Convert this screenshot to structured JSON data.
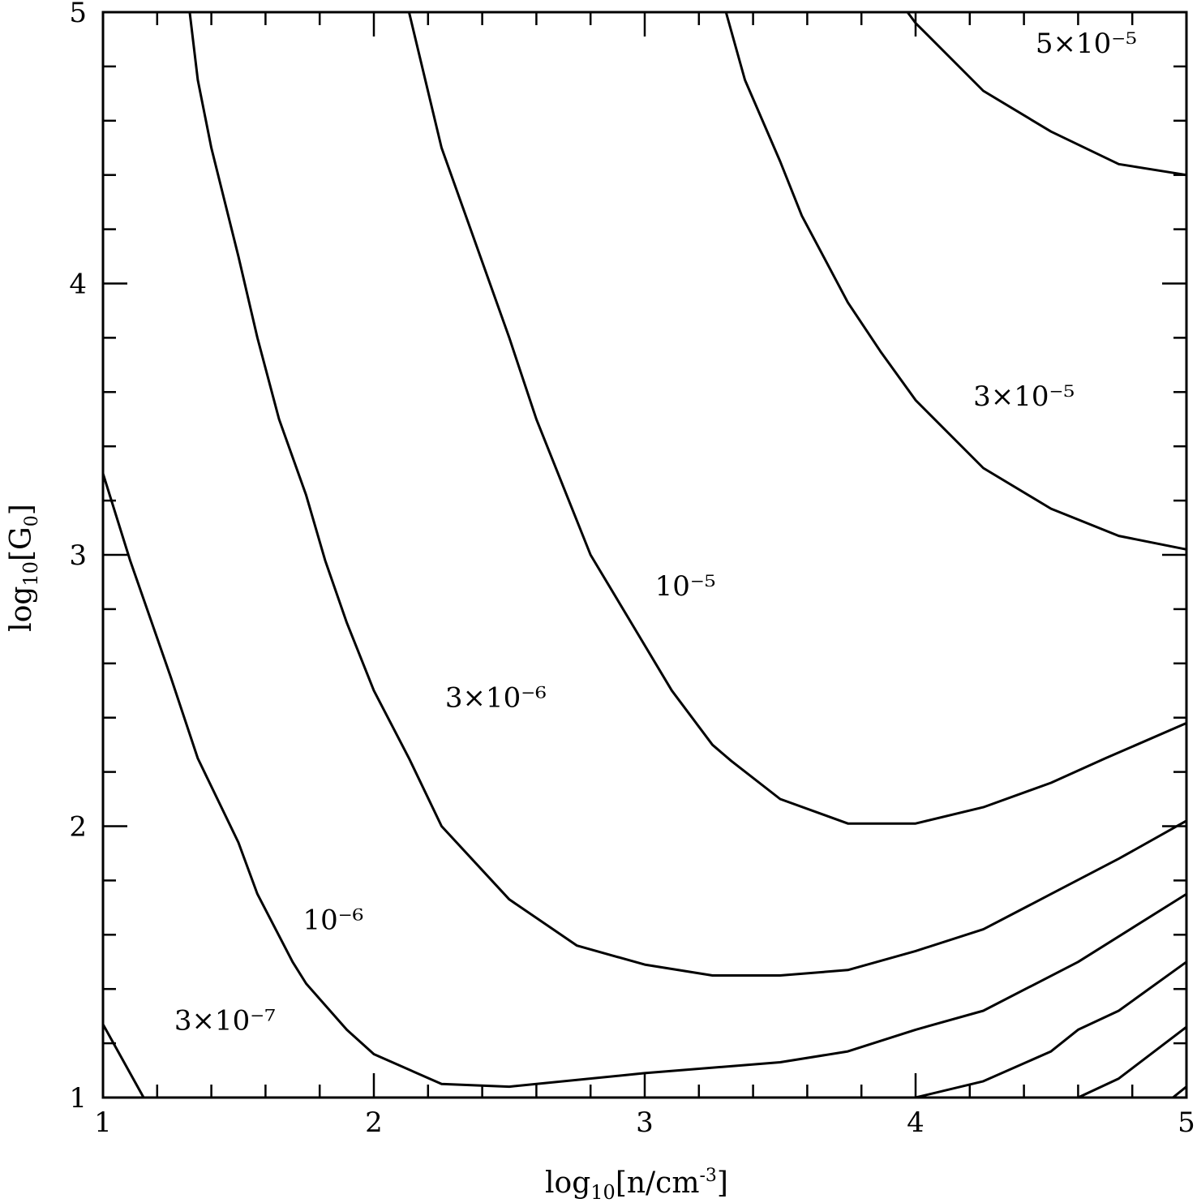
{
  "chart_data": {
    "type": "line",
    "xlabel": "log10[n/cm-3]",
    "ylabel": "log10[G0]",
    "xlim": [
      1,
      5
    ],
    "ylim": [
      1,
      5
    ],
    "xticks": [
      "1",
      "2",
      "3",
      "4",
      "5"
    ],
    "yticks": [
      "1",
      "2",
      "3",
      "4",
      "5"
    ],
    "grid": false,
    "series": [
      {
        "name": "3×10⁻⁷",
        "label_at": [
          1.45,
          1.25
        ],
        "x": [
          1.0,
          1.15
        ],
        "y": [
          1.27,
          1.0
        ]
      },
      {
        "name": "10⁻⁶",
        "label_at": [
          1.85,
          1.62
        ],
        "x": [
          1.0,
          1.1,
          1.25,
          1.35,
          1.5,
          1.57,
          1.7,
          1.75,
          1.9,
          2.0,
          2.25,
          2.5,
          3.0,
          3.5,
          3.75,
          4.0,
          4.25,
          4.6,
          5.0
        ],
        "y": [
          3.3,
          2.98,
          2.55,
          2.25,
          1.94,
          1.75,
          1.5,
          1.42,
          1.25,
          1.16,
          1.05,
          1.04,
          1.09,
          1.13,
          1.17,
          1.25,
          1.32,
          1.5,
          1.75
        ]
      },
      {
        "name": "3×10⁻⁶",
        "label_at": [
          2.45,
          2.44
        ],
        "x": [
          1.32,
          1.35,
          1.4,
          1.5,
          1.57,
          1.65,
          1.75,
          1.82,
          1.9,
          2.0,
          2.13,
          2.25,
          2.5,
          2.75,
          3.0,
          3.25,
          3.5,
          3.75,
          4.0,
          4.25,
          4.5,
          4.75,
          5.0
        ],
        "y": [
          5.0,
          4.75,
          4.5,
          4.1,
          3.8,
          3.5,
          3.22,
          2.98,
          2.75,
          2.5,
          2.25,
          2.0,
          1.73,
          1.56,
          1.49,
          1.45,
          1.45,
          1.47,
          1.54,
          1.62,
          1.75,
          1.88,
          2.02
        ]
      },
      {
        "name": "10⁻⁵",
        "label_at": [
          3.15,
          2.85
        ],
        "x": [
          2.13,
          2.25,
          2.35,
          2.5,
          2.6,
          2.7,
          2.8,
          2.95,
          3.1,
          3.25,
          3.32,
          3.5,
          3.75,
          4.0,
          4.25,
          4.5,
          4.7,
          5.0
        ],
        "y": [
          5.0,
          4.5,
          4.22,
          3.8,
          3.5,
          3.25,
          3.0,
          2.75,
          2.5,
          2.3,
          2.24,
          2.1,
          2.01,
          2.01,
          2.07,
          2.16,
          2.25,
          2.38
        ]
      },
      {
        "name": "3×10⁻⁵",
        "label_at": [
          4.4,
          3.55
        ],
        "x": [
          3.3,
          3.37,
          3.5,
          3.58,
          3.75,
          3.87,
          4.0,
          4.25,
          4.5,
          4.75,
          5.0
        ],
        "y": [
          5.0,
          4.75,
          4.45,
          4.25,
          3.93,
          3.75,
          3.57,
          3.32,
          3.17,
          3.07,
          3.02
        ]
      },
      {
        "name": "5×10⁻⁵",
        "label_at": [
          4.63,
          4.85
        ],
        "x": [
          3.97,
          4.0,
          4.25,
          4.5,
          4.75,
          5.0
        ],
        "y": [
          5.0,
          4.96,
          4.71,
          4.56,
          4.44,
          4.4
        ]
      },
      {
        "name": "",
        "x": [
          4.0,
          4.25,
          4.5,
          4.6,
          4.75,
          5.0
        ],
        "y": [
          1.0,
          1.06,
          1.17,
          1.25,
          1.32,
          1.5
        ]
      },
      {
        "name": "",
        "x": [
          4.6,
          4.75,
          5.0
        ],
        "y": [
          1.0,
          1.07,
          1.26
        ]
      },
      {
        "name": "",
        "x": [
          4.95,
          5.0
        ],
        "y": [
          1.0,
          1.04
        ]
      }
    ]
  }
}
